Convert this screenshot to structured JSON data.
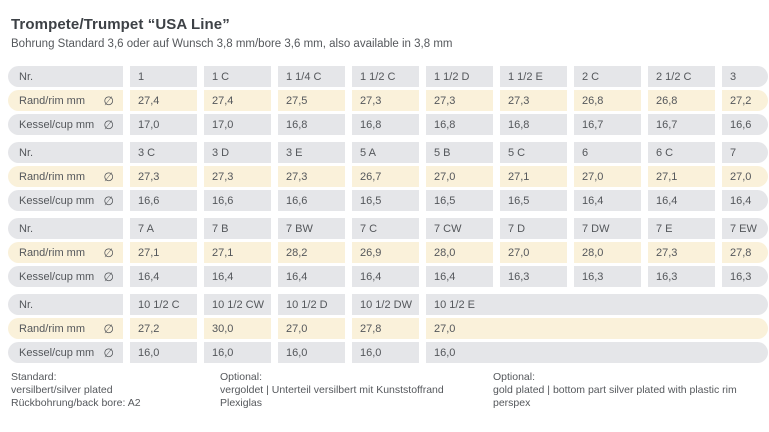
{
  "title": "Trompete/Trumpet “USA Line”",
  "subtitle": "Bohrung Standard 3,6 oder auf Wunsch 3,8 mm/bore 3,6 mm, also available in 3,8 mm",
  "row_labels": {
    "nr": "Nr.",
    "rim": "Rand/rim mm",
    "cup": "Kessel/cup mm",
    "diameter_symbol": "∅"
  },
  "colors": {
    "row_gray": "#e5e6e9",
    "row_cream": "#faf1da",
    "table_text": "#54575b"
  },
  "sections": [
    {
      "nr": [
        "1",
        "1 C",
        "1 1/4 C",
        "1 1/2 C",
        "1 1/2 D",
        "1 1/2 E",
        "2 C",
        "2 1/2 C",
        "3"
      ],
      "rim": [
        "27,4",
        "27,4",
        "27,5",
        "27,3",
        "27,3",
        "27,3",
        "26,8",
        "26,8",
        "27,2"
      ],
      "cup": [
        "17,0",
        "17,0",
        "16,8",
        "16,8",
        "16,8",
        "16,8",
        "16,7",
        "16,7",
        "16,6"
      ]
    },
    {
      "nr": [
        "3 C",
        "3 D",
        "3 E",
        "5 A",
        "5 B",
        "5 C",
        "6",
        "6 C",
        "7"
      ],
      "rim": [
        "27,3",
        "27,3",
        "27,3",
        "26,7",
        "27,0",
        "27,1",
        "27,0",
        "27,1",
        "27,0"
      ],
      "cup": [
        "16,6",
        "16,6",
        "16,6",
        "16,5",
        "16,5",
        "16,5",
        "16,4",
        "16,4",
        "16,4"
      ]
    },
    {
      "nr": [
        "7 A",
        "7 B",
        "7 BW",
        "7 C",
        "7 CW",
        "7 D",
        "7 DW",
        "7 E",
        "7 EW"
      ],
      "rim": [
        "27,1",
        "27,1",
        "28,2",
        "26,9",
        "28,0",
        "27,0",
        "28,0",
        "27,3",
        "27,8"
      ],
      "cup": [
        "16,4",
        "16,4",
        "16,4",
        "16,4",
        "16,4",
        "16,3",
        "16,3",
        "16,3",
        "16,3"
      ]
    },
    {
      "nr": [
        "10 1/2 C",
        "10 1/2 CW",
        "10 1/2 D",
        "10 1/2 DW",
        "10 1/2 E"
      ],
      "rim": [
        "27,2",
        "30,0",
        "27,0",
        "27,8",
        "27,0"
      ],
      "cup": [
        "16,0",
        "16,0",
        "16,0",
        "16,0",
        "16,0"
      ]
    }
  ],
  "footer": {
    "columns": [
      {
        "heading": "Standard:",
        "lines": [
          "versilbert/silver plated",
          "Rückbohrung/back bore: A2"
        ]
      },
      {
        "heading": "Optional:",
        "lines": [
          "vergoldet | Unterteil versilbert mit Kunststoffrand",
          "Plexiglas"
        ]
      },
      {
        "heading": "Optional:",
        "lines": [
          "gold plated | bottom part silver plated with plastic rim",
          "perspex"
        ]
      }
    ]
  }
}
